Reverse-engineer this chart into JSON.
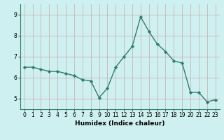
{
  "x": [
    0,
    1,
    2,
    3,
    4,
    5,
    6,
    7,
    8,
    9,
    10,
    11,
    12,
    13,
    14,
    15,
    16,
    17,
    18,
    19,
    20,
    21,
    22,
    23
  ],
  "y": [
    6.5,
    6.5,
    6.4,
    6.3,
    6.3,
    6.2,
    6.1,
    5.9,
    5.85,
    5.05,
    5.5,
    6.5,
    7.0,
    7.5,
    8.9,
    8.2,
    7.6,
    7.25,
    6.8,
    6.7,
    5.3,
    5.3,
    4.85,
    4.95
  ],
  "line_color": "#2e7d6e",
  "marker": "D",
  "markersize": 2.2,
  "linewidth": 1.0,
  "xlabel": "Humidex (Indice chaleur)",
  "xlim": [
    -0.5,
    23.5
  ],
  "ylim": [
    4.5,
    9.5
  ],
  "yticks": [
    5,
    6,
    7,
    8,
    9
  ],
  "xticks": [
    0,
    1,
    2,
    3,
    4,
    5,
    6,
    7,
    8,
    9,
    10,
    11,
    12,
    13,
    14,
    15,
    16,
    17,
    18,
    19,
    20,
    21,
    22,
    23
  ],
  "bg_color": "#cff0f0",
  "grid_color": "#c9a8a8",
  "tick_fontsize": 5.5,
  "label_fontsize": 6.5
}
